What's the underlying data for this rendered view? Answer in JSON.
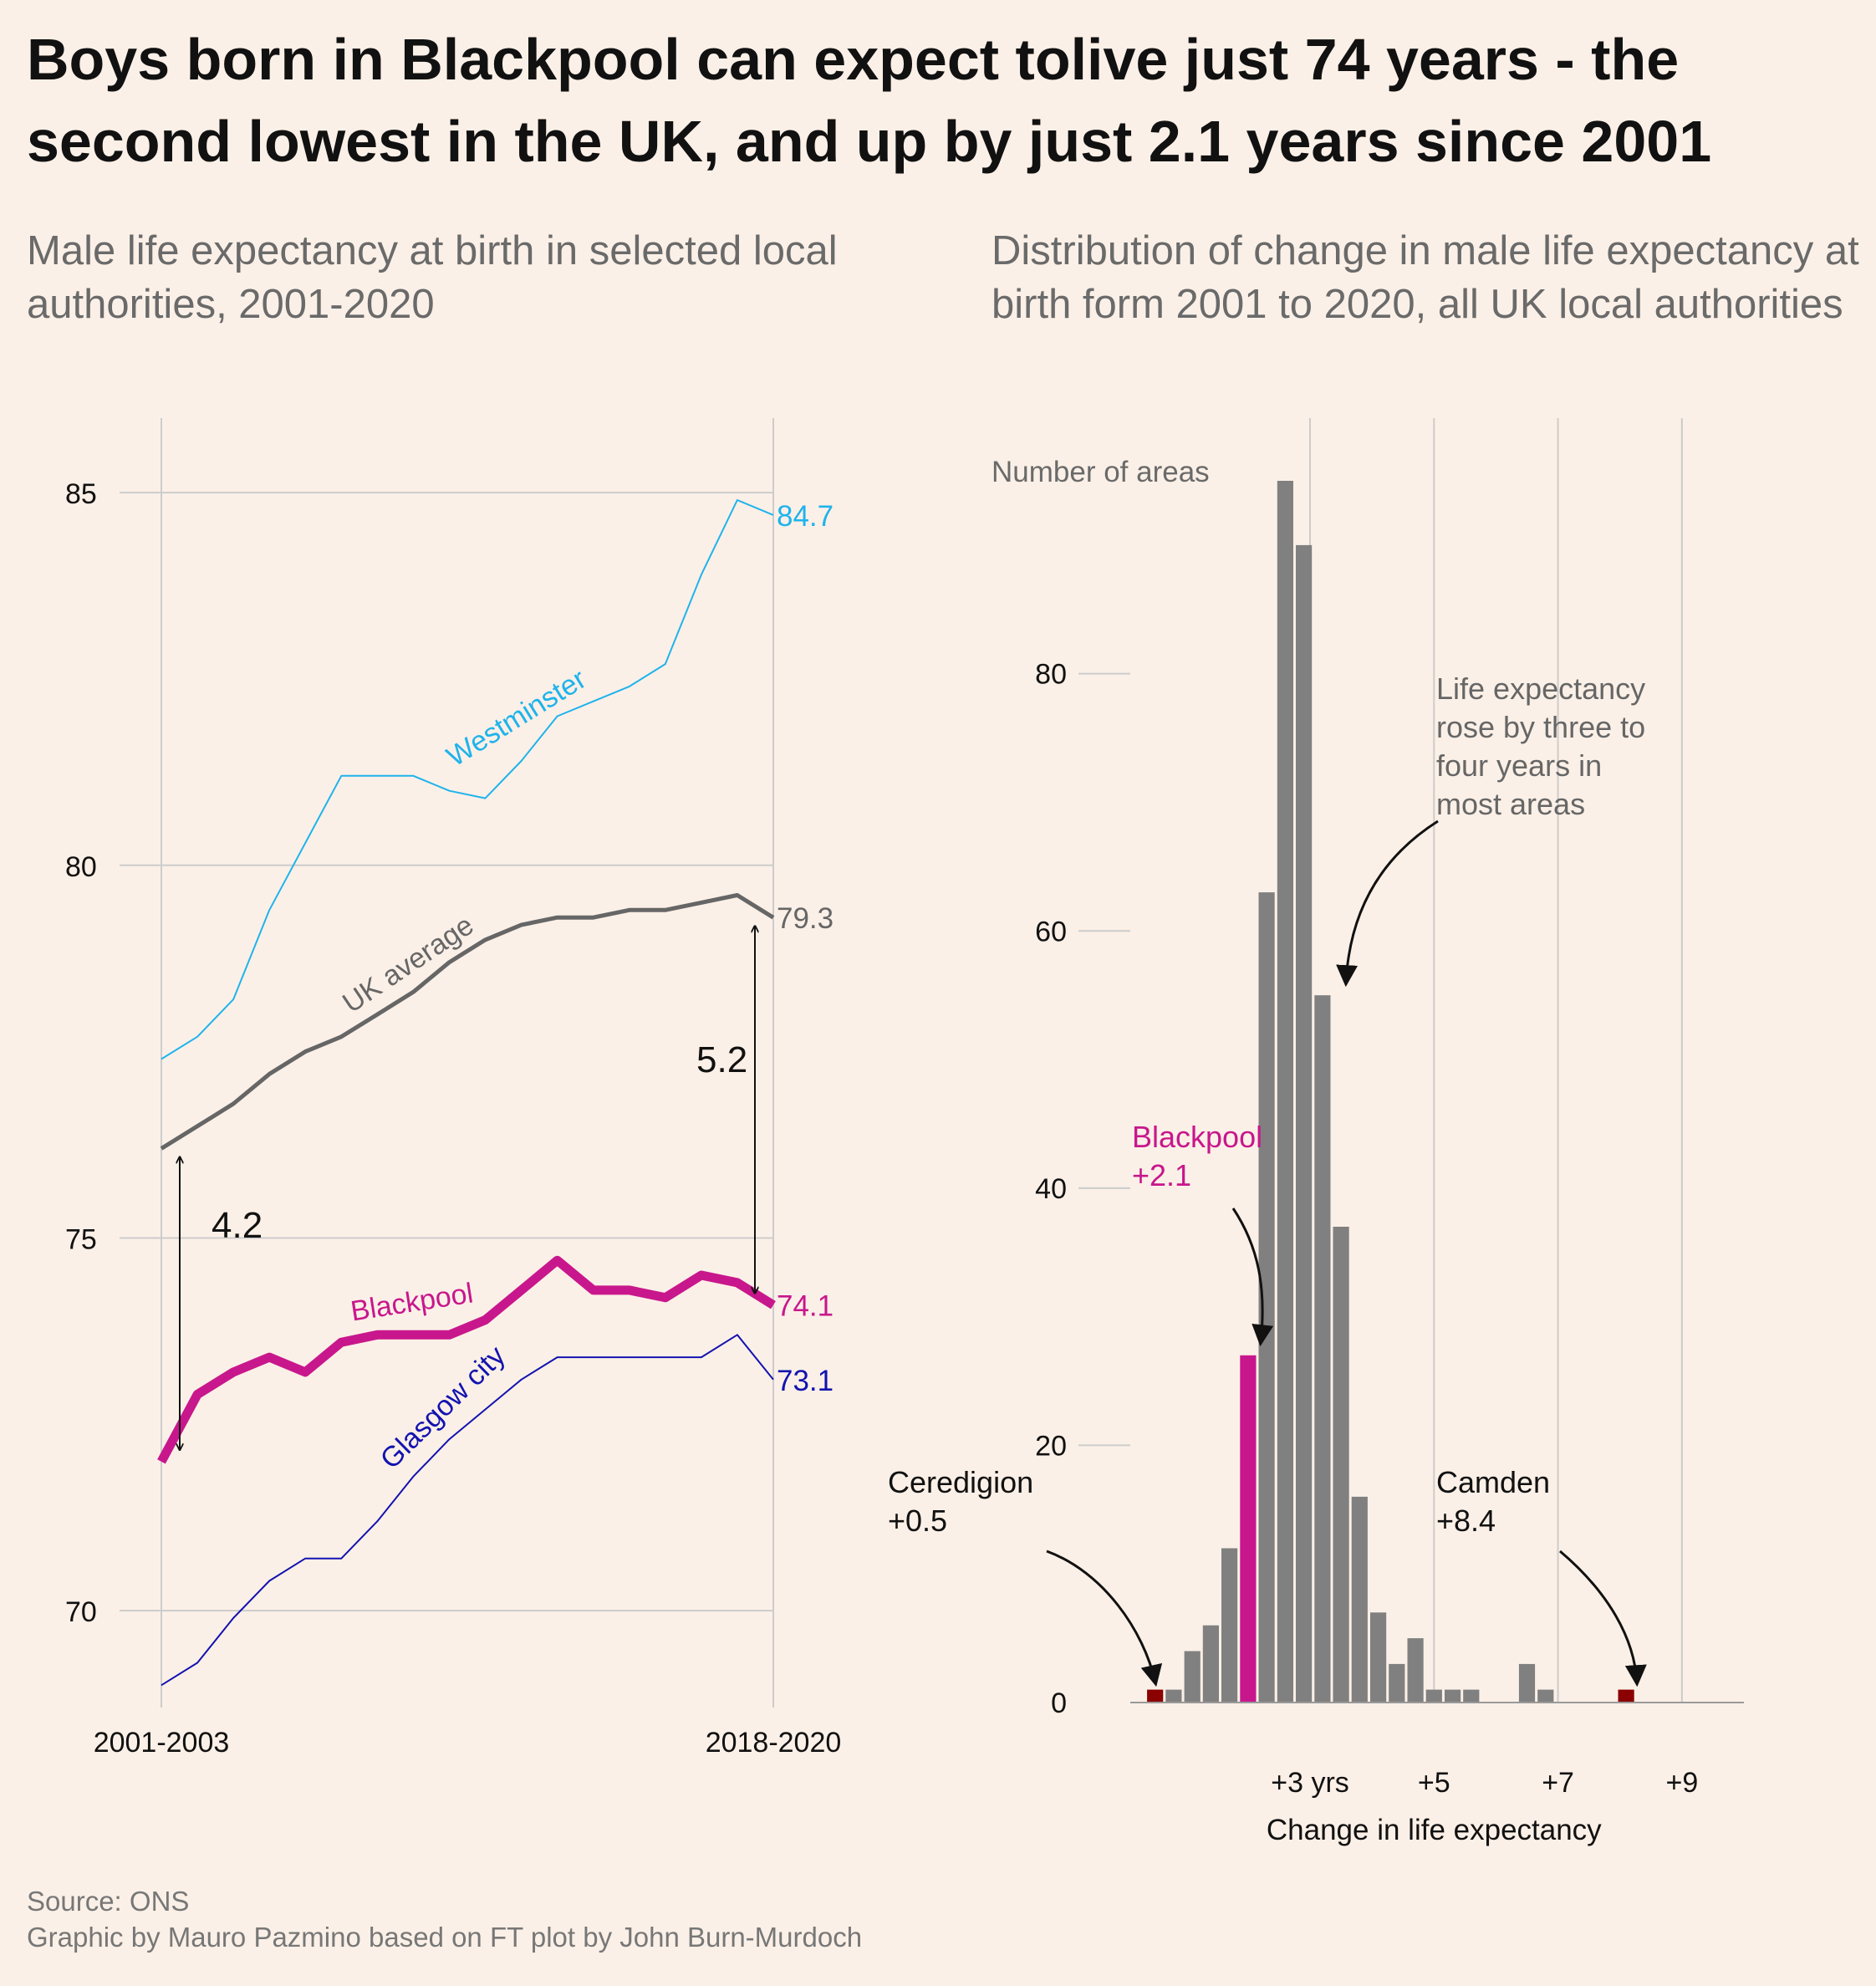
{
  "title": "Boys born in Blackpool can expect tolive just 74 years - the second lowest in the UK, and up by just 2.1 years since 2001",
  "colors": {
    "background": "#fbf0e7",
    "westminster": "#1fb3ec",
    "uk_average": "#666666",
    "blackpool": "#c8178c",
    "glasgow": "#1313b0",
    "bar": "#808080",
    "bar_highlight": "#c8178c",
    "bar_extreme": "#8b0000",
    "grid": "#cccccc"
  },
  "footer": {
    "source": "Source: ONS",
    "credit": "Graphic by Mauro Pazmino based on FT plot by John Burn-Murdoch"
  },
  "chart_data": [
    {
      "type": "line",
      "subtitle": "Male life expectancy at birth in selected local authorities, 2001-2020",
      "x_tick_labels": [
        "2001-2003",
        "2018-2020"
      ],
      "y_ticks": [
        70,
        75,
        80,
        85
      ],
      "ylim": [
        68.7,
        86
      ],
      "grid": true,
      "series": [
        {
          "name": "Westminster",
          "color_key": "westminster",
          "values": [
            77.4,
            77.7,
            78.2,
            79.4,
            80.3,
            81.2,
            81.2,
            81.2,
            81.0,
            80.9,
            81.4,
            82.0,
            82.2,
            82.4,
            82.7,
            83.9,
            84.9,
            84.7
          ],
          "end_label": "84.7"
        },
        {
          "name": "UK average",
          "color_key": "uk_average",
          "values": [
            76.2,
            76.5,
            76.8,
            77.2,
            77.5,
            77.7,
            78.0,
            78.3,
            78.7,
            79.0,
            79.2,
            79.3,
            79.3,
            79.4,
            79.4,
            79.5,
            79.6,
            79.3
          ],
          "end_label": "79.3"
        },
        {
          "name": "Blackpool",
          "color_key": "blackpool",
          "values": [
            72.0,
            72.9,
            73.2,
            73.4,
            73.2,
            73.6,
            73.7,
            73.7,
            73.7,
            73.9,
            74.3,
            74.7,
            74.3,
            74.3,
            74.2,
            74.5,
            74.4,
            74.1
          ],
          "end_label": "74.1"
        },
        {
          "name": "Glasgow city",
          "color_key": "glasgow",
          "values": [
            69.0,
            69.3,
            69.9,
            70.4,
            70.7,
            70.7,
            71.2,
            71.8,
            72.3,
            72.7,
            73.1,
            73.4,
            73.4,
            73.4,
            73.4,
            73.4,
            73.7,
            73.1
          ],
          "end_label": "73.1"
        }
      ],
      "annotations": [
        {
          "text": "4.2",
          "from_series": "UK average",
          "to_series": "Blackpool",
          "at": "2001-2003"
        },
        {
          "text": "5.2",
          "from_series": "UK average",
          "to_series": "Blackpool",
          "at": "2018-2020"
        }
      ]
    },
    {
      "type": "bar",
      "subtitle": "Distribution of change in male life expectancy at birth form 2001 to 2020, all UK local authorities",
      "ylabel": "Number of areas",
      "xlabel": "Change in life expectancy",
      "y_ticks": [
        0,
        20,
        40,
        60,
        80
      ],
      "ylim": [
        0,
        95
      ],
      "x_ticks": [
        {
          "value": 3,
          "label": "+3 yrs"
        },
        {
          "value": 5,
          "label": "+5"
        },
        {
          "value": 7,
          "label": "+7"
        },
        {
          "value": 9,
          "label": "+9"
        }
      ],
      "xlim": [
        0.1,
        10.0
      ],
      "bin_width": 0.3125,
      "bins": [
        {
          "x": 0.5,
          "value": 1,
          "color_key": "bar_extreme"
        },
        {
          "x": 0.8,
          "value": 1
        },
        {
          "x": 1.1,
          "value": 4
        },
        {
          "x": 1.4,
          "value": 6
        },
        {
          "x": 1.7,
          "value": 12
        },
        {
          "x": 2.0,
          "value": 27,
          "color_key": "bar_highlight"
        },
        {
          "x": 2.3,
          "value": 63
        },
        {
          "x": 2.6,
          "value": 95
        },
        {
          "x": 2.9,
          "value": 90
        },
        {
          "x": 3.2,
          "value": 55
        },
        {
          "x": 3.5,
          "value": 37
        },
        {
          "x": 3.8,
          "value": 16
        },
        {
          "x": 4.1,
          "value": 7
        },
        {
          "x": 4.4,
          "value": 3
        },
        {
          "x": 4.7,
          "value": 5
        },
        {
          "x": 5.0,
          "value": 1
        },
        {
          "x": 5.3,
          "value": 1
        },
        {
          "x": 5.6,
          "value": 1
        },
        {
          "x": 6.5,
          "value": 3
        },
        {
          "x": 6.8,
          "value": 1
        },
        {
          "x": 8.1,
          "value": 1,
          "color_key": "bar_extreme"
        }
      ],
      "annotations": [
        {
          "lines": [
            "Life expectancy",
            "rose by three to",
            "four years in",
            "most areas"
          ],
          "color_key": "uk_average",
          "target_x": 3.2
        },
        {
          "lines": [
            "Blackpool",
            "+2.1"
          ],
          "color_key": "blackpool",
          "target_x": 2.0
        },
        {
          "lines": [
            "Ceredigion",
            "+0.5"
          ],
          "color_key": "black",
          "target_x": 0.5
        },
        {
          "lines": [
            "Camden",
            "+8.4"
          ],
          "color_key": "black",
          "target_x": 8.1
        }
      ]
    }
  ]
}
